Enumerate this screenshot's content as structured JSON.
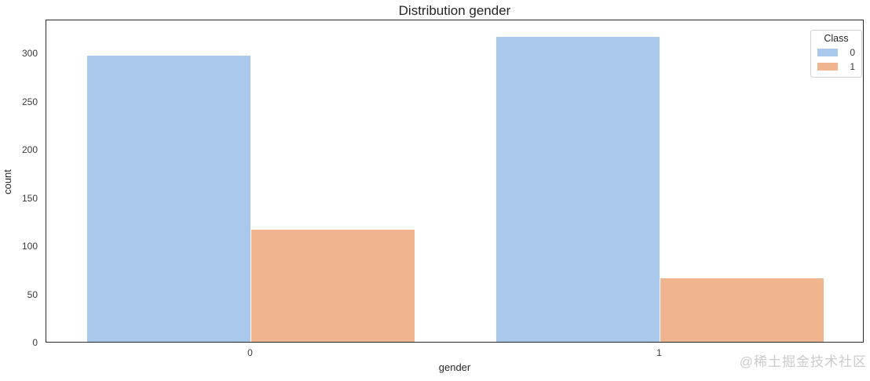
{
  "figure": {
    "title": "Distribution gender",
    "xlabel": "gender",
    "ylabel": "count",
    "watermark": "@稀土掘金技术社区"
  },
  "legend": {
    "title": "Class",
    "entries": [
      {
        "label": "0",
        "color": "#A9C8EC"
      },
      {
        "label": "1",
        "color": "#F0B48E"
      }
    ]
  },
  "chart_data": {
    "type": "bar",
    "title": "Distribution gender",
    "xlabel": "gender",
    "ylabel": "count",
    "categories": [
      "0",
      "1"
    ],
    "series": [
      {
        "name": "0",
        "color": "#A9C8EC",
        "values": [
          297,
          316
        ]
      },
      {
        "name": "1",
        "color": "#F0B48E",
        "values": [
          116,
          66
        ]
      }
    ],
    "yticks": [
      0,
      50,
      100,
      150,
      200,
      250,
      300
    ],
    "ylim": [
      0,
      335
    ],
    "grid": false,
    "legend_title": "Class",
    "legend_position": "upper right"
  },
  "colors": {
    "spine": "#2b2b2b",
    "title_text": "#262626",
    "tick_text": "#3a3a3a",
    "legend_border": "#cfcfcf",
    "watermark": "#cbcbcb",
    "background": "#ffffff"
  }
}
